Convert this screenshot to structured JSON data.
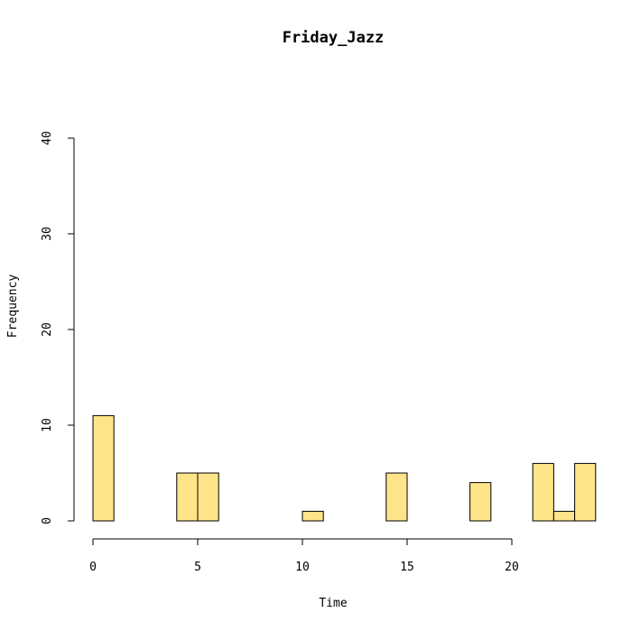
{
  "chart_data": {
    "type": "bar",
    "title": "Friday_Jazz",
    "xlabel": "Time",
    "ylabel": "Frequency",
    "x_ticks": [
      "0",
      "5",
      "10",
      "15",
      "20"
    ],
    "y_ticks": [
      "0",
      "10",
      "20",
      "30",
      "40"
    ],
    "xlim": [
      0,
      24
    ],
    "ylim": [
      0,
      40
    ],
    "bar_fill": "#FFE58A",
    "bar_stroke": "#000000",
    "bins": [
      {
        "start": 0,
        "end": 1,
        "value": 11
      },
      {
        "start": 1,
        "end": 2,
        "value": 0
      },
      {
        "start": 2,
        "end": 3,
        "value": 0
      },
      {
        "start": 3,
        "end": 4,
        "value": 0
      },
      {
        "start": 4,
        "end": 5,
        "value": 5
      },
      {
        "start": 5,
        "end": 6,
        "value": 5
      },
      {
        "start": 6,
        "end": 7,
        "value": 0
      },
      {
        "start": 7,
        "end": 8,
        "value": 0
      },
      {
        "start": 8,
        "end": 9,
        "value": 0
      },
      {
        "start": 9,
        "end": 10,
        "value": 0
      },
      {
        "start": 10,
        "end": 11,
        "value": 1
      },
      {
        "start": 11,
        "end": 12,
        "value": 0
      },
      {
        "start": 12,
        "end": 13,
        "value": 0
      },
      {
        "start": 13,
        "end": 14,
        "value": 0
      },
      {
        "start": 14,
        "end": 15,
        "value": 5
      },
      {
        "start": 15,
        "end": 16,
        "value": 0
      },
      {
        "start": 16,
        "end": 17,
        "value": 0
      },
      {
        "start": 17,
        "end": 18,
        "value": 0
      },
      {
        "start": 18,
        "end": 19,
        "value": 4
      },
      {
        "start": 19,
        "end": 20,
        "value": 0
      },
      {
        "start": 20,
        "end": 21,
        "value": 0
      },
      {
        "start": 21,
        "end": 22,
        "value": 6
      },
      {
        "start": 22,
        "end": 23,
        "value": 1
      },
      {
        "start": 23,
        "end": 24,
        "value": 6
      }
    ]
  }
}
